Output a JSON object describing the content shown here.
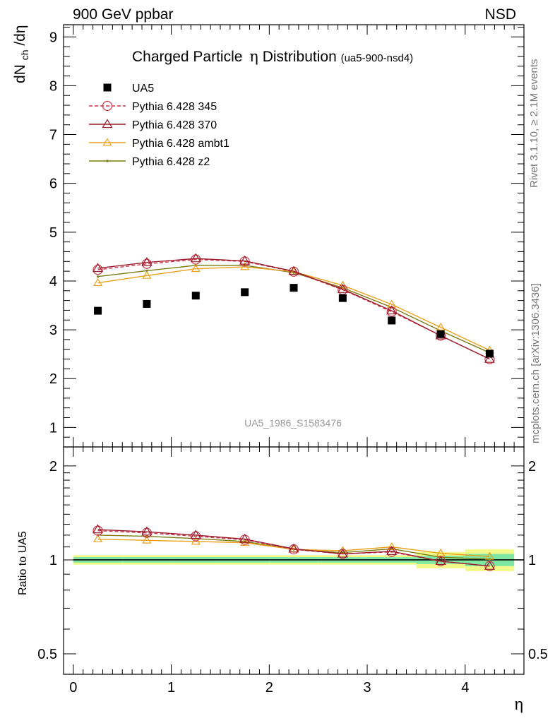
{
  "header": {
    "left": "900 GeV ppbar",
    "right": "NSD"
  },
  "side_labels": {
    "rivet": "Rivet 3.1.10, ≥ 2.1M events",
    "mcplots": "mcplots.cern.ch [arXiv:1306.3436]"
  },
  "main_plot": {
    "title": "Charged Particle",
    "title_symbol": "η",
    "title_rest": " Distribution",
    "title_tag": "(ua5-900-nsd4)",
    "ylabel_base": "dN",
    "ylabel_sub": "ch",
    "ylabel_rest": "/dη",
    "watermark": "UA5_1986_S1583476"
  },
  "ratio_plot": {
    "ylabel": "Ratio to UA5",
    "xlabel": "η"
  },
  "colors": {
    "data": "#000000",
    "p345": "#c8394b",
    "p370": "#9b1a2c",
    "ambt1": "#eaa01a",
    "z2": "#7a7a12",
    "band_outer": "#f2f98a",
    "band_inner": "#7fe7a3"
  },
  "chart_data": [
    {
      "type": "scatter",
      "title": "Charged Particle η Distribution (ua5-900-nsd4)",
      "xlabel": "η",
      "ylabel": "dNch/dη",
      "xlim": [
        -0.1,
        4.6
      ],
      "ylim": [
        0.6,
        9.25
      ],
      "yticks": [
        1,
        2,
        3,
        4,
        5,
        6,
        7,
        8,
        9
      ],
      "xticks": [
        0,
        1,
        2,
        3,
        4
      ],
      "legend_position": "top-left",
      "x": [
        0.25,
        0.75,
        1.25,
        1.75,
        2.25,
        2.75,
        3.25,
        3.75,
        4.25
      ],
      "series": [
        {
          "name": "UA5",
          "key": "data",
          "marker": "square",
          "values": [
            3.39,
            3.53,
            3.7,
            3.77,
            3.86,
            3.65,
            3.19,
            2.91,
            2.51
          ]
        },
        {
          "name": "Pythia 6.428 345",
          "key": "p345",
          "marker": "circle",
          "dashed": true,
          "values": [
            4.23,
            4.35,
            4.44,
            4.4,
            4.19,
            3.82,
            3.37,
            2.88,
            2.4
          ]
        },
        {
          "name": "Pythia 6.428 370",
          "key": "p370",
          "marker": "triangle",
          "values": [
            4.26,
            4.38,
            4.46,
            4.41,
            4.2,
            3.83,
            3.39,
            2.88,
            2.4
          ]
        },
        {
          "name": "Pythia 6.428 ambt1",
          "key": "ambt1",
          "marker": "triangle",
          "values": [
            3.96,
            4.11,
            4.25,
            4.29,
            4.19,
            3.91,
            3.52,
            3.05,
            2.58
          ]
        },
        {
          "name": "Pythia 6.428 z2",
          "key": "z2",
          "marker": "dot",
          "values": [
            4.09,
            4.21,
            4.32,
            4.32,
            4.17,
            3.86,
            3.46,
            2.98,
            2.53
          ]
        }
      ]
    },
    {
      "type": "line",
      "title": "",
      "xlabel": "η",
      "ylabel": "Ratio to UA5",
      "scale": "log",
      "xlim": [
        -0.1,
        4.6
      ],
      "ylim": [
        0.43,
        2.3
      ],
      "yticks": [
        0.5,
        1,
        2
      ],
      "x": [
        0.25,
        0.75,
        1.25,
        1.75,
        2.25,
        2.75,
        3.25,
        3.75,
        4.25
      ],
      "reference": 1.0,
      "band_outer": [
        0.035,
        0.035,
        0.035,
        0.035,
        0.035,
        0.035,
        0.035,
        0.06,
        0.08
      ],
      "band_inner": [
        0.02,
        0.02,
        0.02,
        0.02,
        0.02,
        0.02,
        0.02,
        0.03,
        0.045
      ],
      "series": [
        {
          "name": "Pythia 6.428 345",
          "key": "p345",
          "marker": "circle",
          "dashed": true,
          "values": [
            1.24,
            1.22,
            1.19,
            1.16,
            1.08,
            1.045,
            1.06,
            0.99,
            0.955
          ]
        },
        {
          "name": "Pythia 6.428 370",
          "key": "p370",
          "marker": "triangle",
          "values": [
            1.25,
            1.23,
            1.2,
            1.165,
            1.085,
            1.045,
            1.065,
            0.99,
            0.955
          ]
        },
        {
          "name": "Pythia 6.428 ambt1",
          "key": "ambt1",
          "marker": "triangle",
          "values": [
            1.165,
            1.155,
            1.145,
            1.135,
            1.08,
            1.07,
            1.1,
            1.05,
            1.025
          ]
        },
        {
          "name": "Pythia 6.428 z2",
          "key": "z2",
          "marker": "dot",
          "values": [
            1.2,
            1.19,
            1.17,
            1.145,
            1.08,
            1.055,
            1.085,
            1.02,
            1.005
          ]
        }
      ]
    }
  ]
}
